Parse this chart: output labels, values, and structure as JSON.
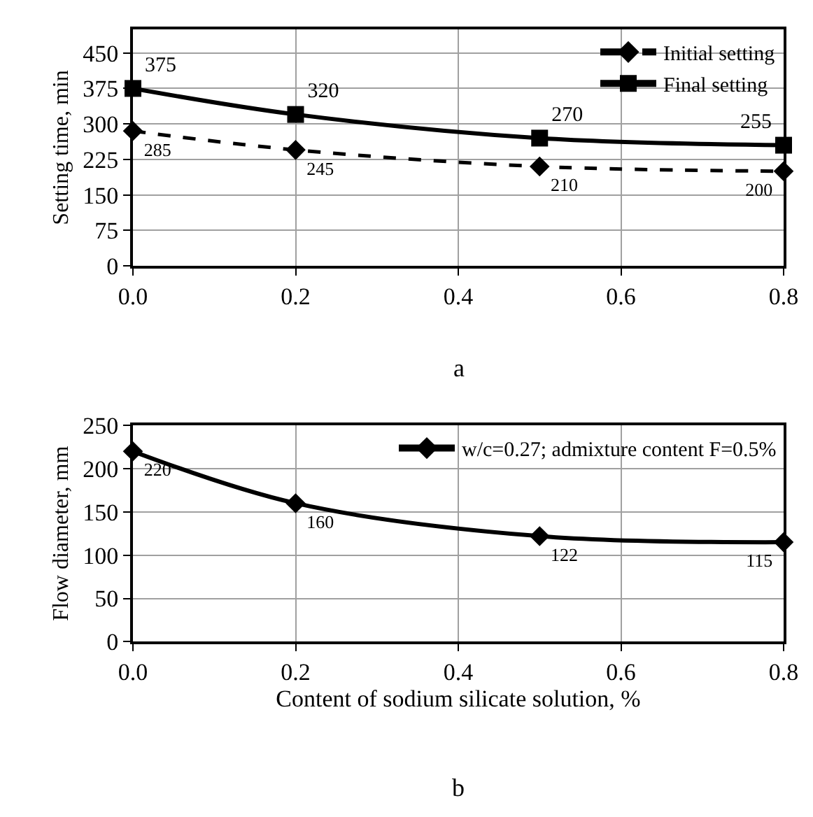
{
  "chart_data": [
    {
      "type": "line",
      "annotations": [
        "a"
      ],
      "ylabel": "Setting time, min",
      "x": [
        0.0,
        0.2,
        0.5,
        0.8
      ],
      "xlim": [
        0,
        0.8
      ],
      "xticks": [
        {
          "value": 0,
          "label": "0.0"
        },
        0.2,
        0.4,
        0.6,
        0.8
      ],
      "ylim": [
        0,
        500
      ],
      "yticks": [
        0,
        75,
        150,
        225,
        300,
        375,
        450
      ],
      "grid": true,
      "legend": "top right",
      "data_labels": true,
      "series": [
        {
          "name": "Initial setting",
          "color": "#000000",
          "values": [
            285,
            245,
            210,
            200
          ],
          "marker": "diamond",
          "line_style": "dashed"
        },
        {
          "name": "Final setting",
          "color": "#000000",
          "values": [
            375,
            320,
            270,
            255
          ],
          "marker": "square",
          "line_style": "solid"
        }
      ]
    },
    {
      "type": "line",
      "annotations": [
        "b"
      ],
      "xlabel": "Content of sodium silicate solution, %",
      "ylabel": "Flow diameter, mm",
      "x": [
        0.0,
        0.2,
        0.5,
        0.8
      ],
      "xlim": [
        0,
        0.8
      ],
      "xticks": [
        {
          "value": 0,
          "label": "0.0"
        },
        0.2,
        0.4,
        0.6,
        0.8
      ],
      "ylim": [
        0,
        250
      ],
      "yticks": [
        0,
        50,
        100,
        150,
        200,
        250
      ],
      "grid": true,
      "legend": "top right",
      "data_labels": true,
      "series": [
        {
          "name": "w/c=0.27; admixture content F=0.5%",
          "color": "#000000",
          "values": [
            220,
            160,
            122,
            115
          ],
          "marker": "diamond",
          "line_style": "solid"
        }
      ]
    }
  ]
}
